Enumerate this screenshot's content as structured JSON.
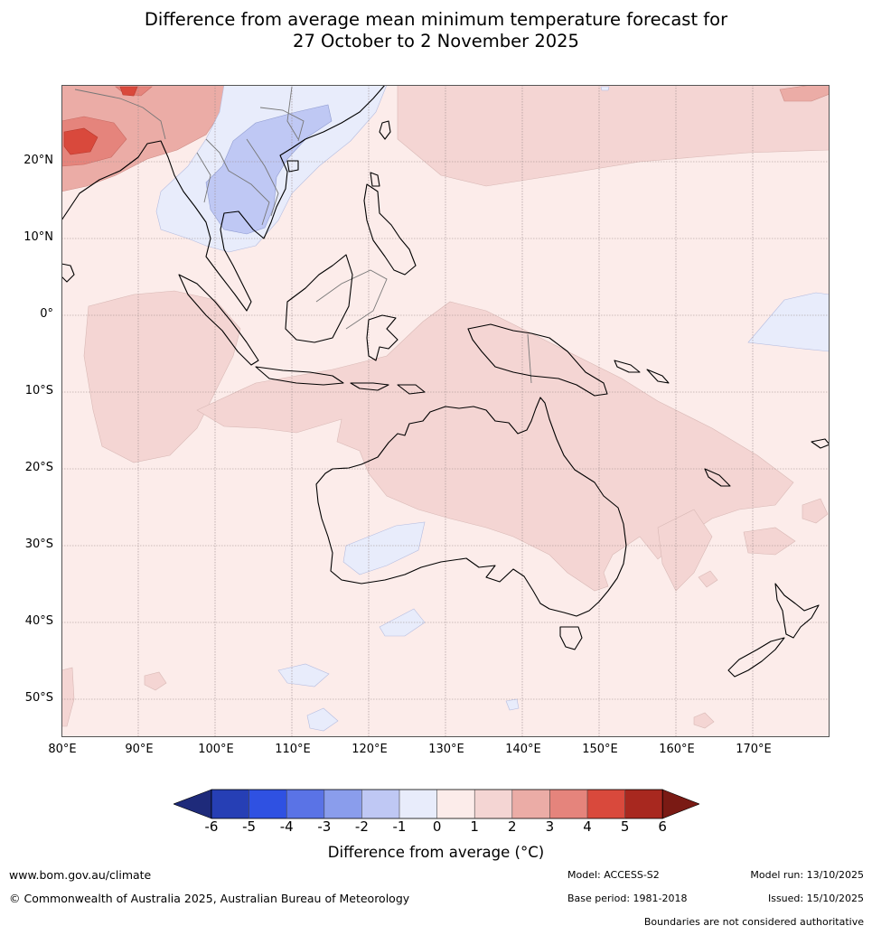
{
  "title": {
    "line1": "Difference from average mean minimum temperature forecast for",
    "line2": "27 October to 2 November 2025"
  },
  "map": {
    "lat_labels": [
      "20°N",
      "10°N",
      "0°",
      "10°S",
      "20°S",
      "30°S",
      "40°S",
      "50°S"
    ],
    "lon_labels": [
      "80°E",
      "90°E",
      "100°E",
      "110°E",
      "120°E",
      "130°E",
      "140°E",
      "150°E",
      "160°E",
      "170°E"
    ],
    "extent": {
      "lon_min": 80,
      "lon_max": 180,
      "lat_min": -55,
      "lat_max": 30
    },
    "base_anomaly_celsius_range": "0 to 1",
    "regions": [
      {
        "name": "indochina cool anomaly",
        "anomaly": "-2 to -1"
      },
      {
        "name": "bay of bengal warm anomaly",
        "anomaly": "3 to 5"
      },
      {
        "name": "northern australia warm anomaly",
        "anomaly": "1 to 2"
      },
      {
        "name": "western australia cool patch",
        "anomaly": "-1 to 0"
      }
    ]
  },
  "colorbar": {
    "ticks": [
      "-6",
      "-5",
      "-4",
      "-3",
      "-2",
      "-1",
      "0",
      "1",
      "2",
      "3",
      "4",
      "5",
      "6"
    ],
    "colors": [
      "#1e2a7a",
      "#263fb5",
      "#2f51e2",
      "#5a73e6",
      "#8a9dec",
      "#bfc8f4",
      "#e8ecfb",
      "#fcecea",
      "#f4d5d3",
      "#ebaca6",
      "#e5847c",
      "#d9493c",
      "#a8281f",
      "#7a1a14"
    ],
    "label": "Difference from average (°C)"
  },
  "footer": {
    "website": "www.bom.gov.au/climate",
    "copyright": "© Commonwealth of Australia 2025, Australian Bureau of Meteorology",
    "model": "Model: ACCESS-S2",
    "base_period": "Base period: 1981-2018",
    "model_run": "Model run: 13/10/2025",
    "issued": "Issued: 15/10/2025",
    "disclaimer": "Boundaries are not considered authoritative"
  },
  "colors": {
    "ocean_base": "#fcecea",
    "warm_light": "#f4d5d3",
    "warm_mid": "#ebaca6",
    "warm_strong": "#e5847c",
    "warm_hot": "#d9493c",
    "cool_light": "#e8ecfb",
    "cool_mid": "#bfc8f4"
  }
}
